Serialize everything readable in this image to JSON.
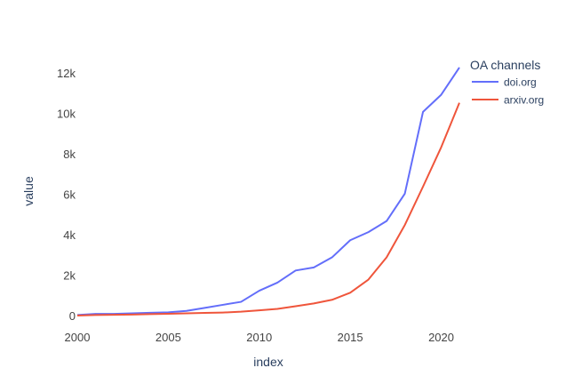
{
  "chart_data": {
    "type": "line",
    "xlabel": "index",
    "ylabel": "value",
    "legend_title": "OA channels",
    "legend_position": "top-right",
    "grid": false,
    "x": [
      2000,
      2001,
      2002,
      2003,
      2004,
      2005,
      2006,
      2007,
      2008,
      2009,
      2010,
      2011,
      2012,
      2013,
      2014,
      2015,
      2016,
      2017,
      2018,
      2019,
      2020,
      2021
    ],
    "xlim": [
      2000,
      2021
    ],
    "ylim": [
      -200,
      13000
    ],
    "x_ticks": [
      2000,
      2005,
      2010,
      2015,
      2020
    ],
    "x_tick_labels": [
      "2000",
      "2005",
      "2010",
      "2015",
      "2020"
    ],
    "y_ticks": [
      0,
      2000,
      4000,
      6000,
      8000,
      10000,
      12000
    ],
    "y_tick_labels": [
      "0",
      "2k",
      "4k",
      "6k",
      "8k",
      "10k",
      "12k"
    ],
    "series": [
      {
        "name": "doi.org",
        "color": "#636efa",
        "values": [
          50,
          100,
          100,
          130,
          160,
          180,
          250,
          400,
          550,
          700,
          1250,
          1650,
          2250,
          2400,
          2900,
          3750,
          4150,
          4700,
          6050,
          10100,
          10950,
          12300
        ]
      },
      {
        "name": "arxiv.org",
        "color": "#ef553b",
        "values": [
          20,
          50,
          60,
          70,
          90,
          110,
          130,
          150,
          170,
          210,
          280,
          350,
          480,
          620,
          800,
          1150,
          1800,
          2900,
          4500,
          6400,
          8350,
          10550
        ]
      }
    ]
  }
}
